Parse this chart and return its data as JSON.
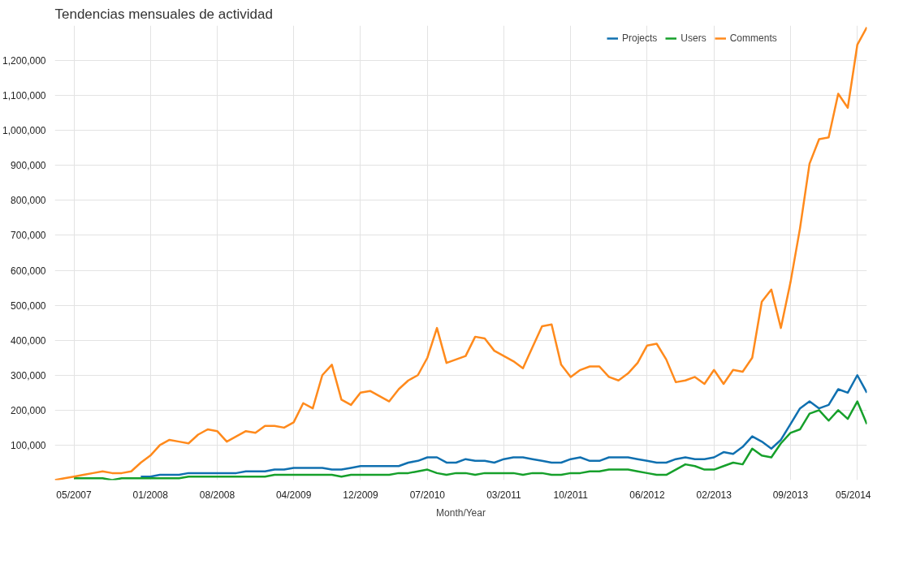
{
  "chart_data": {
    "type": "line",
    "title": "Tendencias mensuales de actividad",
    "xlabel": "Month/Year",
    "categories": [
      null,
      null,
      "05/2007",
      null,
      null,
      null,
      null,
      null,
      null,
      null,
      "01/2008",
      null,
      null,
      null,
      null,
      null,
      null,
      "08/2008",
      null,
      null,
      null,
      null,
      null,
      null,
      null,
      "04/2009",
      null,
      null,
      null,
      null,
      null,
      null,
      "12/2009",
      null,
      null,
      null,
      null,
      null,
      null,
      "07/2010",
      null,
      null,
      null,
      null,
      null,
      null,
      null,
      "03/2011",
      null,
      null,
      null,
      null,
      null,
      null,
      "10/2011",
      null,
      null,
      null,
      null,
      null,
      null,
      null,
      "06/2012",
      null,
      null,
      null,
      null,
      null,
      null,
      "02/2013",
      null,
      null,
      null,
      null,
      null,
      null,
      null,
      "09/2013",
      null,
      null,
      null,
      null,
      null,
      null,
      "05/2014",
      null
    ],
    "series": [
      {
        "name": "Projects",
        "color": "#1070b0",
        "values": [
          null,
          null,
          null,
          null,
          null,
          null,
          null,
          null,
          null,
          10000,
          10000,
          15000,
          15000,
          15000,
          20000,
          20000,
          20000,
          20000,
          20000,
          20000,
          25000,
          25000,
          25000,
          30000,
          30000,
          35000,
          35000,
          35000,
          35000,
          30000,
          30000,
          35000,
          40000,
          40000,
          40000,
          40000,
          40000,
          50000,
          55000,
          65000,
          65000,
          50000,
          50000,
          60000,
          55000,
          55000,
          50000,
          60000,
          65000,
          65000,
          60000,
          55000,
          50000,
          50000,
          60000,
          65000,
          55000,
          55000,
          65000,
          65000,
          65000,
          60000,
          55000,
          50000,
          50000,
          60000,
          65000,
          60000,
          60000,
          65000,
          80000,
          75000,
          95000,
          125000,
          110000,
          90000,
          115000,
          160000,
          205000,
          225000,
          205000,
          215000,
          260000,
          250000,
          300000,
          250000
        ]
      },
      {
        "name": "Users",
        "color": "#16a02b",
        "values": [
          null,
          null,
          5000,
          5000,
          5000,
          5000,
          0,
          5000,
          5000,
          5000,
          5000,
          5000,
          5000,
          5000,
          10000,
          10000,
          10000,
          10000,
          10000,
          10000,
          10000,
          10000,
          10000,
          15000,
          15000,
          15000,
          15000,
          15000,
          15000,
          15000,
          10000,
          15000,
          15000,
          15000,
          15000,
          15000,
          20000,
          20000,
          25000,
          30000,
          20000,
          15000,
          20000,
          20000,
          15000,
          20000,
          20000,
          20000,
          20000,
          15000,
          20000,
          20000,
          15000,
          15000,
          20000,
          20000,
          25000,
          25000,
          30000,
          30000,
          30000,
          25000,
          20000,
          15000,
          15000,
          30000,
          45000,
          40000,
          30000,
          30000,
          40000,
          50000,
          45000,
          90000,
          70000,
          65000,
          105000,
          135000,
          145000,
          190000,
          200000,
          170000,
          200000,
          175000,
          225000,
          160000
        ]
      },
      {
        "name": "Comments",
        "color": "#ff8a1c",
        "values": [
          0,
          5000,
          10000,
          15000,
          20000,
          25000,
          20000,
          20000,
          25000,
          50000,
          70000,
          100000,
          115000,
          110000,
          105000,
          130000,
          145000,
          140000,
          110000,
          125000,
          140000,
          135000,
          155000,
          155000,
          150000,
          165000,
          220000,
          205000,
          300000,
          330000,
          230000,
          215000,
          250000,
          255000,
          240000,
          225000,
          260000,
          285000,
          300000,
          350000,
          435000,
          335000,
          345000,
          355000,
          410000,
          405000,
          370000,
          355000,
          340000,
          320000,
          380000,
          440000,
          445000,
          330000,
          295000,
          315000,
          325000,
          325000,
          295000,
          285000,
          305000,
          335000,
          385000,
          390000,
          345000,
          280000,
          285000,
          295000,
          275000,
          315000,
          275000,
          315000,
          310000,
          350000,
          510000,
          545000,
          435000,
          565000,
          720000,
          905000,
          975000,
          980000,
          1105000,
          1065000,
          1245000,
          1295000
        ]
      }
    ],
    "ylim": [
      0,
      1300000
    ],
    "yticks": [
      {
        "value": 100000,
        "label": "100,000"
      },
      {
        "value": 200000,
        "label": "200,000"
      },
      {
        "value": 300000,
        "label": "300,000"
      },
      {
        "value": 400000,
        "label": "400,000"
      },
      {
        "value": 500000,
        "label": "500,000"
      },
      {
        "value": 600000,
        "label": "600,000"
      },
      {
        "value": 700000,
        "label": "700,000"
      },
      {
        "value": 800000,
        "label": "800,000"
      },
      {
        "value": 900000,
        "label": "900,000"
      },
      {
        "value": 1000000,
        "label": "1,000,000"
      },
      {
        "value": 1100000,
        "label": "1,100,000"
      },
      {
        "value": 1200000,
        "label": "1,200,000"
      }
    ],
    "grid": true,
    "legend": "top right",
    "marker": "none",
    "line_style": "solid"
  }
}
